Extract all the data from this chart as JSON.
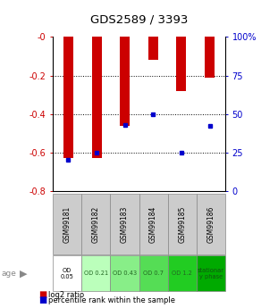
{
  "title": "GDS2589 / 3393",
  "samples": [
    "GSM99181",
    "GSM99182",
    "GSM99183",
    "GSM99184",
    "GSM99185",
    "GSM99186"
  ],
  "log2_ratio": [
    -0.63,
    -0.63,
    -0.46,
    -0.12,
    -0.28,
    -0.21
  ],
  "percentile_rank": [
    20,
    25,
    43,
    50,
    25,
    42
  ],
  "bar_color": "#cc0000",
  "percentile_color": "#0000cc",
  "ylim_left": [
    -0.8,
    0.0
  ],
  "ylim_right": [
    0,
    100
  ],
  "yticks_left": [
    -0.8,
    -0.6,
    -0.4,
    -0.2,
    0.0
  ],
  "yticks_right": [
    0,
    25,
    50,
    75,
    100
  ],
  "ytick_labels_left": [
    "-0.8",
    "-0.6",
    "-0.4",
    "-0.2",
    "-0"
  ],
  "ytick_labels_right": [
    "0",
    "25",
    "50",
    "75",
    "100%"
  ],
  "age_labels": [
    "OD\n0.05",
    "OD 0.21",
    "OD 0.43",
    "OD 0.7",
    "OD 1.2",
    "stationar\ny phase"
  ],
  "age_colors": [
    "#ffffff",
    "#bbffbb",
    "#88ee88",
    "#55dd55",
    "#22cc22",
    "#00aa00"
  ],
  "age_fontcolors": [
    "#000000",
    "#226622",
    "#226622",
    "#226622",
    "#226622",
    "#115511"
  ],
  "header_color": "#cccccc",
  "bg_color": "#ffffff",
  "left_axis_color": "#cc0000",
  "right_axis_color": "#0000cc",
  "bar_width": 0.35,
  "figsize": [
    3.11,
    3.45
  ],
  "dpi": 100
}
